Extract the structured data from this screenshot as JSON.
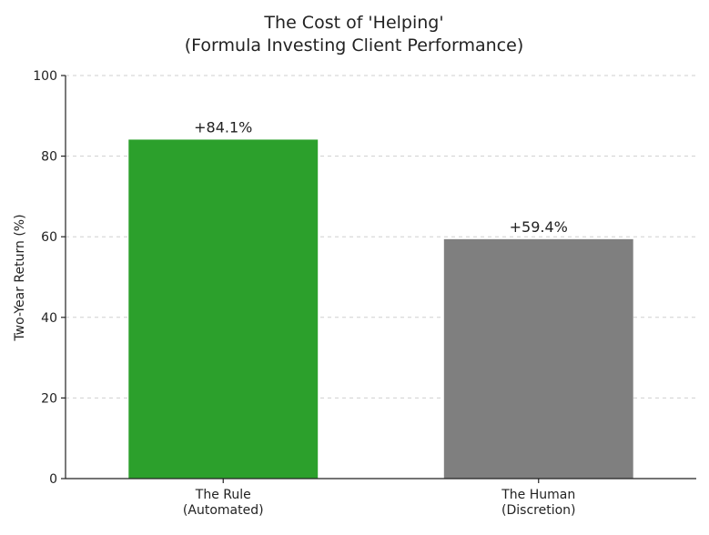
{
  "chart_data": {
    "type": "bar",
    "title": [
      "The Cost of 'Helping'",
      "(Formula Investing Client Performance)"
    ],
    "ylabel": "Two-Year Return (%)",
    "xlabel": "",
    "ylim": [
      0,
      100
    ],
    "yticks": [
      0,
      20,
      40,
      60,
      80,
      100
    ],
    "grid": true,
    "grid_axis": "y",
    "categories": [
      [
        "The Rule",
        "(Automated)"
      ],
      [
        "The Human",
        "(Discretion)"
      ]
    ],
    "values": [
      84.1,
      59.4
    ],
    "data_labels": [
      "+84.1%",
      "+59.4%"
    ],
    "colors": [
      "#2ca02c",
      "#7f7f7f"
    ]
  }
}
